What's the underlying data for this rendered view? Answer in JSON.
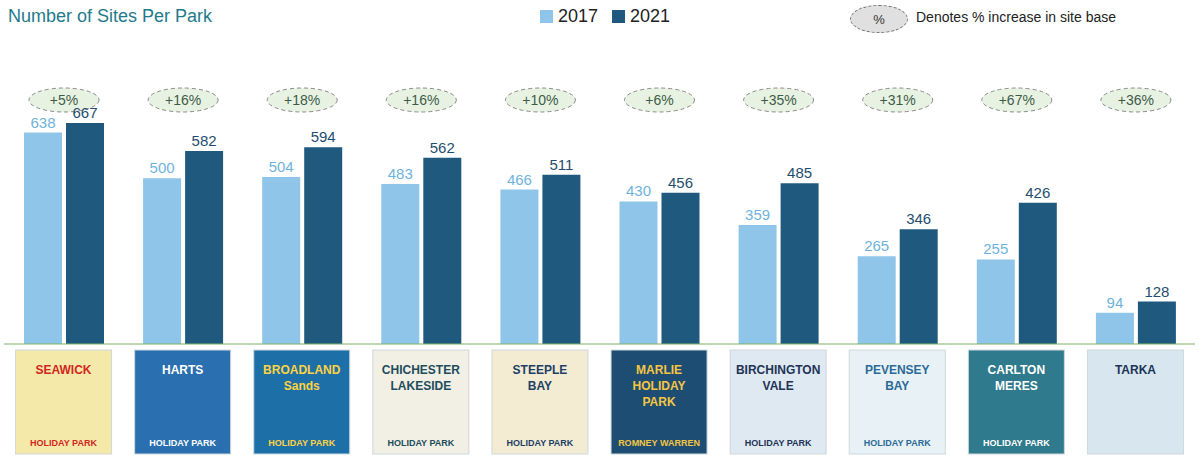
{
  "chart_data": {
    "type": "bar",
    "title": "Number of Sites Per Park",
    "categories": [
      "SEAWICK",
      "HARTS",
      "BROADLAND Sands",
      "CHICHESTER LAKESIDE",
      "STEEPLE BAY",
      "MARLIE HOLIDAY PARK",
      "BIRCHINGTON VALE",
      "PEVENSEY BAY",
      "CARLTON MERES",
      "TARKA"
    ],
    "subtitles": [
      "HOLIDAY PARK",
      "HOLIDAY PARK",
      "HOLIDAY PARK",
      "HOLIDAY PARK",
      "HOLIDAY PARK",
      "ROMNEY WARREN",
      "HOLIDAY PARK",
      "HOLIDAY PARK",
      "HOLIDAY PARK",
      null
    ],
    "series": [
      {
        "name": "2017",
        "color": "#8ec5e8",
        "values": [
          638,
          500,
          504,
          483,
          466,
          430,
          359,
          265,
          255,
          94
        ]
      },
      {
        "name": "2021",
        "color": "#1f5a7e",
        "values": [
          667,
          582,
          594,
          562,
          511,
          456,
          485,
          346,
          426,
          128
        ]
      }
    ],
    "increase_labels": [
      "+5%",
      "+16%",
      "+18%",
      "+16%",
      "+10%",
      "+6%",
      "+35%",
      "+31%",
      "+67%",
      "+36%"
    ],
    "annotations": [
      {
        "symbol": "%",
        "text": "Denotes % increase in site base"
      }
    ],
    "ylim": [
      0,
      700
    ],
    "data_labels": true,
    "tick_labels": "x",
    "legend": "top",
    "grid": false
  }
}
